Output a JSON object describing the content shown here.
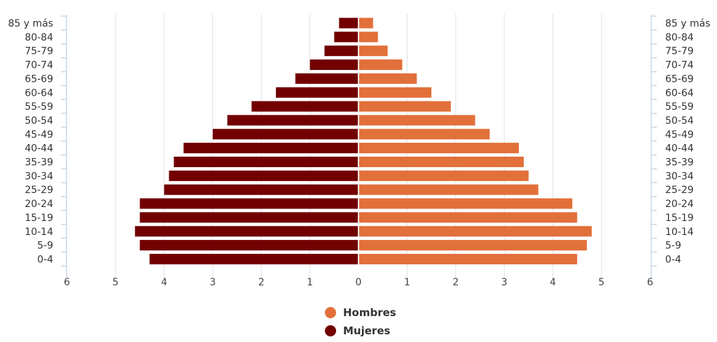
{
  "chart_data": {
    "type": "bar",
    "orientation": "horizontal",
    "layout": "population-pyramid",
    "categories": [
      "0-4",
      "5-9",
      "10-14",
      "15-19",
      "20-24",
      "25-29",
      "30-34",
      "35-39",
      "40-44",
      "45-49",
      "50-54",
      "55-59",
      "60-64",
      "65-69",
      "70-74",
      "75-79",
      "80-84",
      "85 y más"
    ],
    "series": [
      {
        "name": "Hombres",
        "color": "#E2703A",
        "side": "right",
        "values": [
          4.5,
          4.7,
          4.8,
          4.5,
          4.4,
          3.7,
          3.5,
          3.4,
          3.3,
          2.7,
          2.4,
          1.9,
          1.5,
          1.2,
          0.9,
          0.6,
          0.4,
          0.3
        ]
      },
      {
        "name": "Mujeres",
        "color": "#720000",
        "side": "left",
        "values": [
          4.3,
          4.5,
          4.6,
          4.5,
          4.5,
          4.0,
          3.9,
          3.8,
          3.6,
          3.0,
          2.7,
          2.2,
          1.7,
          1.3,
          1.0,
          0.7,
          0.5,
          0.4
        ]
      }
    ],
    "xlim": [
      -6,
      6
    ],
    "x_ticks": [
      -6,
      -5,
      -4,
      -3,
      -2,
      -1,
      0,
      1,
      2,
      3,
      4,
      5,
      6
    ],
    "x_tick_labels": [
      "6",
      "5",
      "4",
      "3",
      "2",
      "1",
      "0",
      "1",
      "2",
      "3",
      "4",
      "5",
      "6"
    ],
    "title": "",
    "xlabel": "",
    "ylabel": "",
    "grid": "vertical",
    "legend": "bottom-center",
    "axis_color": "#C8D8E8",
    "grid_color": "#DDE3EA"
  }
}
